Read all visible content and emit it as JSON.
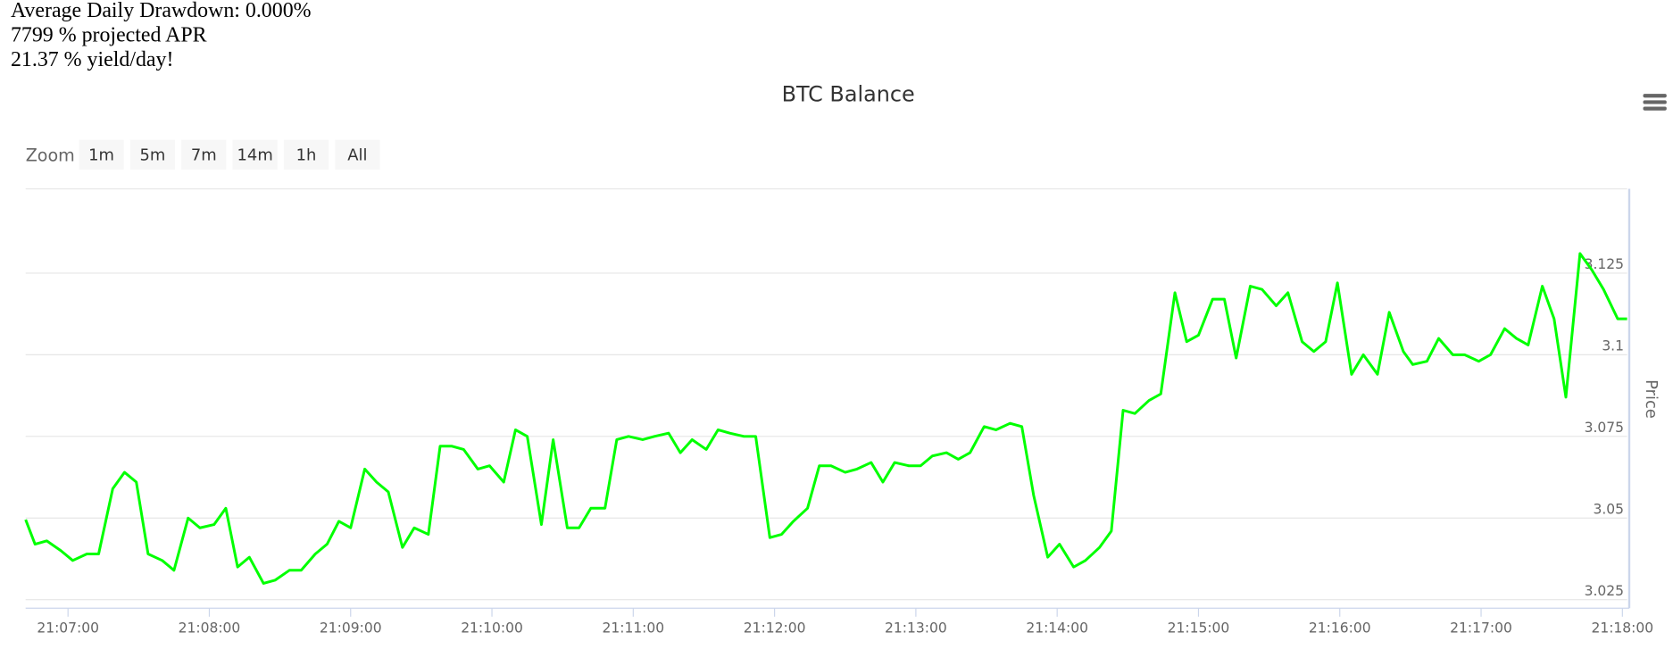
{
  "stats": [
    "Average Daily Drawdown: 0.000%",
    "7799 % projected APR",
    "21.37 % yield/day!"
  ],
  "zoom": {
    "label": "Zoom",
    "buttons": [
      "1m",
      "5m",
      "7m",
      "14m",
      "1h",
      "All"
    ]
  },
  "chart_data": {
    "type": "line",
    "title": "BTC Balance",
    "y_label": "Price",
    "color": "#00ff00",
    "grid": true,
    "x": [
      "21:06:42",
      "21:06:46",
      "21:06:51",
      "21:06:57",
      "21:07:02",
      "21:07:08",
      "21:07:13",
      "21:07:19",
      "21:07:24",
      "21:07:29",
      "21:07:34",
      "21:07:40",
      "21:07:45",
      "21:07:51",
      "21:07:56",
      "21:08:02",
      "21:08:07",
      "21:08:12",
      "21:08:17",
      "21:08:23",
      "21:08:28",
      "21:08:34",
      "21:08:39",
      "21:08:45",
      "21:08:50",
      "21:08:55",
      "21:09:00",
      "21:09:06",
      "21:09:11",
      "21:09:16",
      "21:09:22",
      "21:09:27",
      "21:09:33",
      "21:09:38",
      "21:09:43",
      "21:09:48",
      "21:09:54",
      "21:09:59",
      "21:10:05",
      "21:10:10",
      "21:10:15",
      "21:10:21",
      "21:10:26",
      "21:10:32",
      "21:10:37",
      "21:10:42",
      "21:10:48",
      "21:10:53",
      "21:10:58",
      "21:11:04",
      "21:11:09",
      "21:11:15",
      "21:11:20",
      "21:11:25",
      "21:11:31",
      "21:11:36",
      "21:11:41",
      "21:11:47",
      "21:11:52",
      "21:11:58",
      "21:12:03",
      "21:12:08",
      "21:12:14",
      "21:12:19",
      "21:12:24",
      "21:12:30",
      "21:12:35",
      "21:12:41",
      "21:12:46",
      "21:12:51",
      "21:12:57",
      "21:13:02",
      "21:13:07",
      "21:13:13",
      "21:13:18",
      "21:13:23",
      "21:13:29",
      "21:13:34",
      "21:13:40",
      "21:13:45",
      "21:13:50",
      "21:13:56",
      "21:14:01",
      "21:14:07",
      "21:14:12",
      "21:14:18",
      "21:14:23",
      "21:14:28",
      "21:14:33",
      "21:14:39",
      "21:14:44",
      "21:14:50",
      "21:14:55",
      "21:15:00",
      "21:15:06",
      "21:15:11",
      "21:15:16",
      "21:15:22",
      "21:15:27",
      "21:15:33",
      "21:15:38",
      "21:15:44",
      "21:15:49",
      "21:15:54",
      "21:15:59",
      "21:16:05",
      "21:16:10",
      "21:16:16",
      "21:16:21",
      "21:16:27",
      "21:16:31",
      "21:16:37",
      "21:16:42",
      "21:16:48",
      "21:16:53",
      "21:16:59",
      "21:17:04",
      "21:17:10",
      "21:17:15",
      "21:17:20",
      "21:17:26",
      "21:17:31",
      "21:17:36",
      "21:17:42",
      "21:17:47",
      "21:17:52",
      "21:17:58",
      "21:18:02"
    ],
    "values": [
      3.0495,
      3.042,
      3.043,
      3.04,
      3.037,
      3.039,
      3.039,
      3.059,
      3.064,
      3.061,
      3.039,
      3.037,
      3.034,
      3.05,
      3.047,
      3.048,
      3.053,
      3.035,
      3.038,
      3.03,
      3.031,
      3.034,
      3.034,
      3.039,
      3.042,
      3.049,
      3.047,
      3.065,
      3.061,
      3.058,
      3.041,
      3.047,
      3.045,
      3.072,
      3.072,
      3.071,
      3.065,
      3.066,
      3.061,
      3.077,
      3.075,
      3.048,
      3.074,
      3.047,
      3.047,
      3.053,
      3.053,
      3.074,
      3.075,
      3.074,
      3.075,
      3.076,
      3.07,
      3.074,
      3.071,
      3.077,
      3.076,
      3.075,
      3.075,
      3.044,
      3.045,
      3.049,
      3.053,
      3.066,
      3.066,
      3.064,
      3.065,
      3.067,
      3.061,
      3.067,
      3.066,
      3.066,
      3.069,
      3.07,
      3.068,
      3.07,
      3.078,
      3.077,
      3.079,
      3.078,
      3.057,
      3.038,
      3.042,
      3.035,
      3.037,
      3.041,
      3.046,
      3.083,
      3.082,
      3.086,
      3.088,
      3.119,
      3.104,
      3.106,
      3.117,
      3.117,
      3.099,
      3.121,
      3.12,
      3.115,
      3.119,
      3.104,
      3.101,
      3.104,
      3.122,
      3.094,
      3.1,
      3.094,
      3.113,
      3.101,
      3.097,
      3.098,
      3.105,
      3.1,
      3.1,
      3.098,
      3.1,
      3.108,
      3.105,
      3.103,
      3.121,
      3.111,
      3.087,
      3.131,
      3.126,
      3.12,
      3.111,
      3.111
    ],
    "xlim": [
      "21:06:42",
      "21:18:02"
    ],
    "xticks": [
      "21:07:00",
      "21:08:00",
      "21:09:00",
      "21:10:00",
      "21:11:00",
      "21:12:00",
      "21:13:00",
      "21:14:00",
      "21:15:00",
      "21:16:00",
      "21:17:00",
      "21:18:00"
    ],
    "ylim": [
      3.0224,
      3.1508
    ],
    "yticks": [
      3.025,
      3.05,
      3.075,
      3.1,
      3.125
    ]
  }
}
